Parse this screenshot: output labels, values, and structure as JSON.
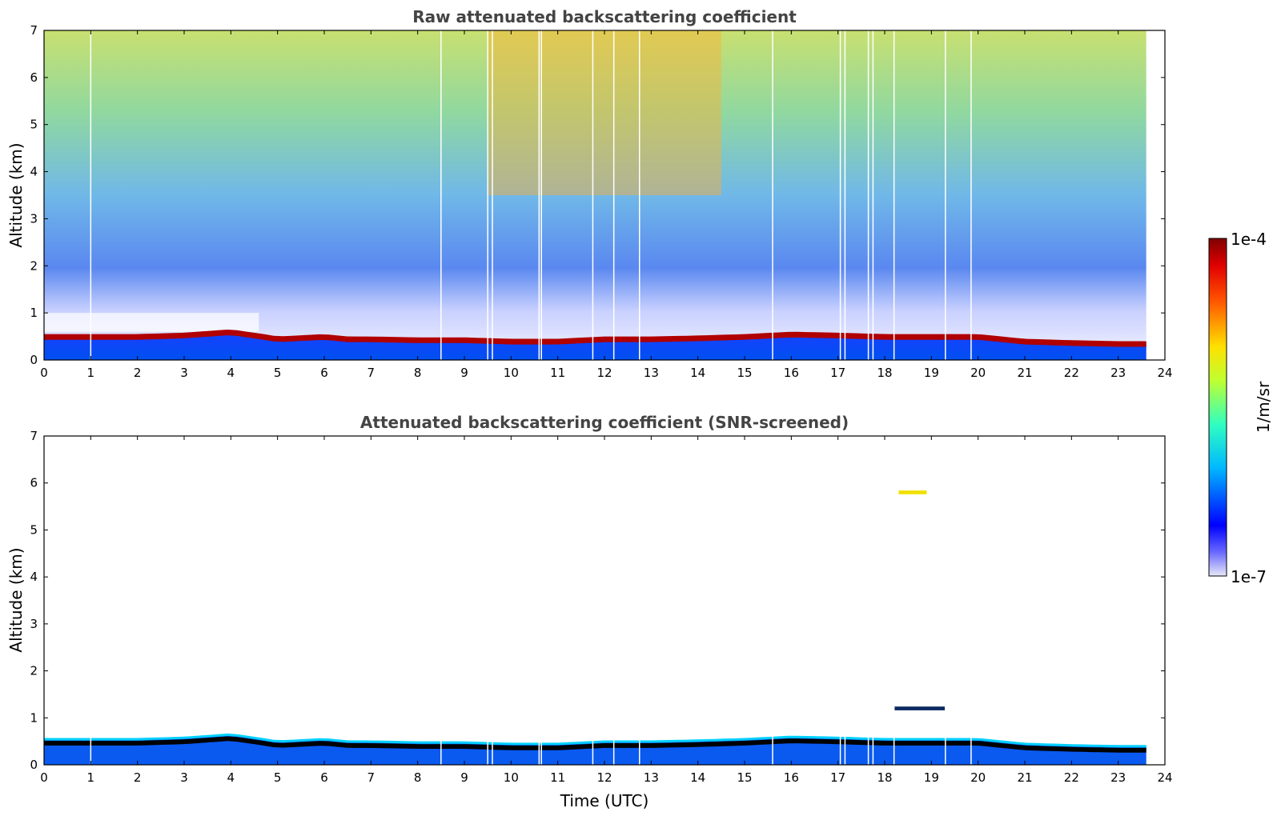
{
  "chart_data": [
    {
      "type": "heatmap",
      "title": "Raw attenuated backscattering coefficient",
      "xlabel": "",
      "ylabel": "Altitude (km)",
      "xlim": [
        0,
        24
      ],
      "ylim": [
        0,
        7
      ],
      "xticks": [
        "0",
        "1",
        "2",
        "3",
        "4",
        "5",
        "6",
        "7",
        "8",
        "9",
        "10",
        "11",
        "12",
        "13",
        "14",
        "15",
        "16",
        "17",
        "18",
        "19",
        "20",
        "21",
        "22",
        "23",
        "24"
      ],
      "yticks": [
        "0",
        "1",
        "2",
        "3",
        "4",
        "5",
        "6",
        "7"
      ],
      "data_end_time": 23.6,
      "boundary_layer_top_km": [
        {
          "t": 0,
          "h": 0.55
        },
        {
          "t": 1,
          "h": 0.55
        },
        {
          "t": 2,
          "h": 0.55
        },
        {
          "t": 3,
          "h": 0.58
        },
        {
          "t": 4,
          "h": 0.65
        },
        {
          "t": 4.7,
          "h": 0.55
        },
        {
          "t": 5,
          "h": 0.5
        },
        {
          "t": 6,
          "h": 0.55
        },
        {
          "t": 6.5,
          "h": 0.5
        },
        {
          "t": 7,
          "h": 0.5
        },
        {
          "t": 8,
          "h": 0.48
        },
        {
          "t": 9,
          "h": 0.48
        },
        {
          "t": 10,
          "h": 0.45
        },
        {
          "t": 11,
          "h": 0.45
        },
        {
          "t": 12,
          "h": 0.5
        },
        {
          "t": 13,
          "h": 0.5
        },
        {
          "t": 14,
          "h": 0.52
        },
        {
          "t": 15,
          "h": 0.55
        },
        {
          "t": 16,
          "h": 0.6
        },
        {
          "t": 17,
          "h": 0.58
        },
        {
          "t": 18,
          "h": 0.55
        },
        {
          "t": 19,
          "h": 0.55
        },
        {
          "t": 20,
          "h": 0.55
        },
        {
          "t": 21,
          "h": 0.45
        },
        {
          "t": 22,
          "h": 0.42
        },
        {
          "t": 23,
          "h": 0.4
        },
        {
          "t": 23.6,
          "h": 0.4
        }
      ],
      "data_gaps_utc": [
        1.0,
        8.5,
        9.5,
        9.6,
        10.6,
        10.65,
        11.75,
        12.2,
        12.75,
        15.6,
        17.05,
        17.15,
        17.65,
        17.75,
        18.2,
        19.3,
        19.85
      ]
    },
    {
      "type": "heatmap",
      "title": "Attenuated backscattering coefficient (SNR-screened)",
      "xlabel": "Time (UTC)",
      "ylabel": "Altitude (km)",
      "xlim": [
        0,
        24
      ],
      "ylim": [
        0,
        7
      ],
      "xticks": [
        "0",
        "1",
        "2",
        "3",
        "4",
        "5",
        "6",
        "7",
        "8",
        "9",
        "10",
        "11",
        "12",
        "13",
        "14",
        "15",
        "16",
        "17",
        "18",
        "19",
        "20",
        "21",
        "22",
        "23",
        "24"
      ],
      "yticks": [
        "0",
        "1",
        "2",
        "3",
        "4",
        "5",
        "6",
        "7"
      ],
      "data_end_time": 23.6,
      "features": [
        {
          "name": "aerosol layer",
          "t_start": 18.2,
          "t_end": 19.3,
          "altitude_km": 1.2
        },
        {
          "name": "elevated layer",
          "t_start": 18.3,
          "t_end": 18.9,
          "altitude_km": 5.8
        }
      ]
    }
  ],
  "colorbar": {
    "label": "1/m/sr",
    "max_label": "1e-4",
    "min_label": "1e-7",
    "colormap": "jet",
    "colors": [
      "#e8e8f8",
      "#0000ff",
      "#00c8ff",
      "#40ffb0",
      "#c8ff30",
      "#ffd000",
      "#ff5000",
      "#800000"
    ]
  }
}
